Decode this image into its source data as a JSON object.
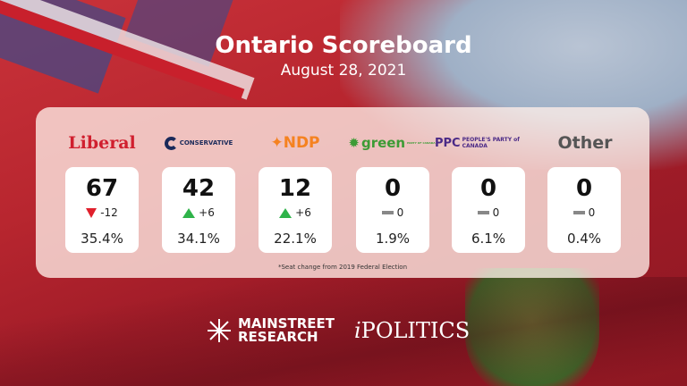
{
  "header": {
    "title": "Ontario Scoreboard",
    "date": "August 28, 2021"
  },
  "parties": [
    {
      "name": "Liberal",
      "logo_text": "Liberal",
      "seats": "67",
      "change": "-12",
      "trend": "down",
      "vote_pct": "35.4%",
      "color": "#d01f2e"
    },
    {
      "name": "Conservative",
      "logo_text": "CONSERVATIVE",
      "seats": "42",
      "change": "+6",
      "trend": "up",
      "vote_pct": "34.1%",
      "color": "#1a2a5a"
    },
    {
      "name": "NDP",
      "logo_text": "NDP",
      "seats": "12",
      "change": "+6",
      "trend": "up",
      "vote_pct": "22.1%",
      "color": "#f58220"
    },
    {
      "name": "Green",
      "logo_text": "green",
      "logo_subtext": "PARTY OF CANADA",
      "seats": "0",
      "change": "0",
      "trend": "none",
      "vote_pct": "1.9%",
      "color": "#3d9b35"
    },
    {
      "name": "PPC",
      "logo_text": "PPC",
      "logo_subtext": "PEOPLE'S PARTY of CANADA",
      "seats": "0",
      "change": "0",
      "trend": "none",
      "vote_pct": "6.1%",
      "color": "#4b2a87"
    },
    {
      "name": "Other",
      "logo_text": "Other",
      "seats": "0",
      "change": "0",
      "trend": "none",
      "vote_pct": "0.4%",
      "color": "#555555"
    }
  ],
  "footnote": "*Seat change from 2019 Federal Election",
  "sponsors": {
    "mainstreet_line1": "MAINSTREET",
    "mainstreet_line2": "RESEARCH",
    "ipolitics_i": "i",
    "ipolitics_rest": "POLITICS"
  }
}
